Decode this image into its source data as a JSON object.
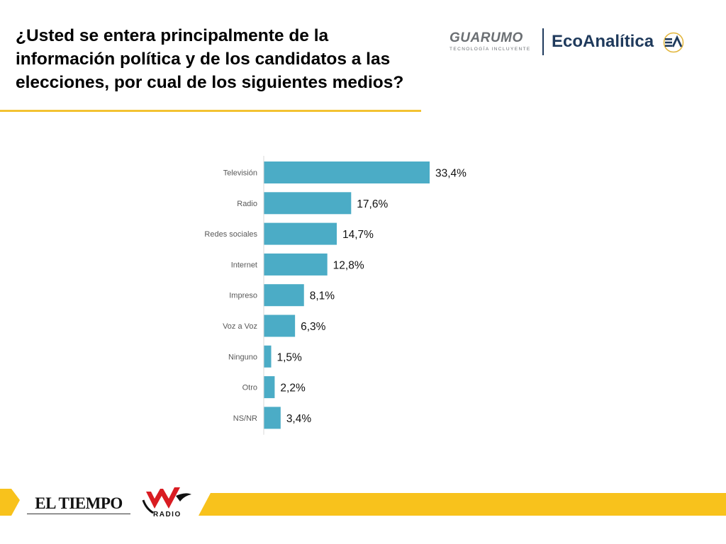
{
  "title_lines": [
    "¿Usted se entera principalmente de la",
    "información política y de los candidatos a las",
    "elecciones, por cual de los siguientes medios?"
  ],
  "logos": {
    "guarumo": "GUARUMO",
    "guarumo_tagline": "TECNOLOGÍA INCLUYENTE",
    "ecoanalitica": "EcoAnalítica",
    "eltiempo": "EL TIEMPO",
    "wradio": "RADIO"
  },
  "colors": {
    "bar": "#4bacc6",
    "accent": "#f3c232",
    "eco_navy": "#1f3a5c"
  },
  "chart_data": {
    "type": "bar",
    "orientation": "horizontal",
    "categories": [
      "Televisión",
      "Radio",
      "Redes sociales",
      "Internet",
      "Impreso",
      "Voz a Voz",
      "Ninguno",
      "Otro",
      "NS/NR"
    ],
    "values": [
      33.4,
      17.6,
      14.7,
      12.8,
      8.1,
      6.3,
      1.5,
      2.2,
      3.4
    ],
    "value_labels": [
      "33,4%",
      "17,6%",
      "14,7%",
      "12,8%",
      "8,1%",
      "6,3%",
      "1,5%",
      "2,2%",
      "3,4%"
    ],
    "xlim": [
      0,
      40
    ],
    "unit": "%",
    "grid": false,
    "legend": "none"
  }
}
